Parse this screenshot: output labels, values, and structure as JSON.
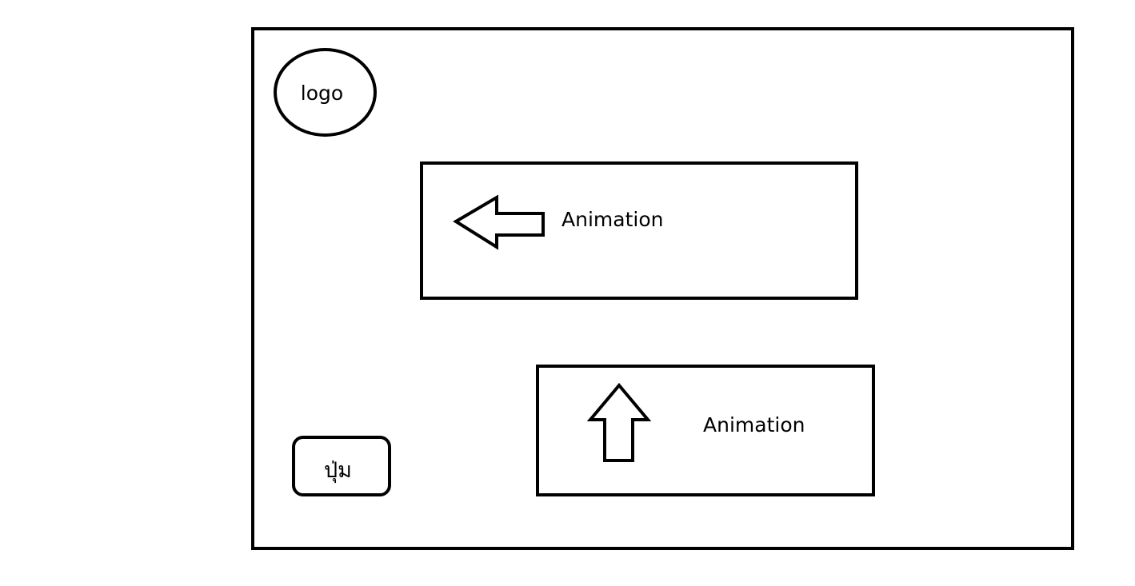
{
  "logo": {
    "label": "logo"
  },
  "animations": [
    {
      "label": "Animation",
      "arrow_icon": "arrow-left-icon"
    },
    {
      "label": "Animation",
      "arrow_icon": "arrow-up-icon"
    }
  ],
  "button": {
    "label": "ปุ่ม"
  },
  "colors": {
    "stroke": "#000000",
    "background": "#ffffff"
  }
}
